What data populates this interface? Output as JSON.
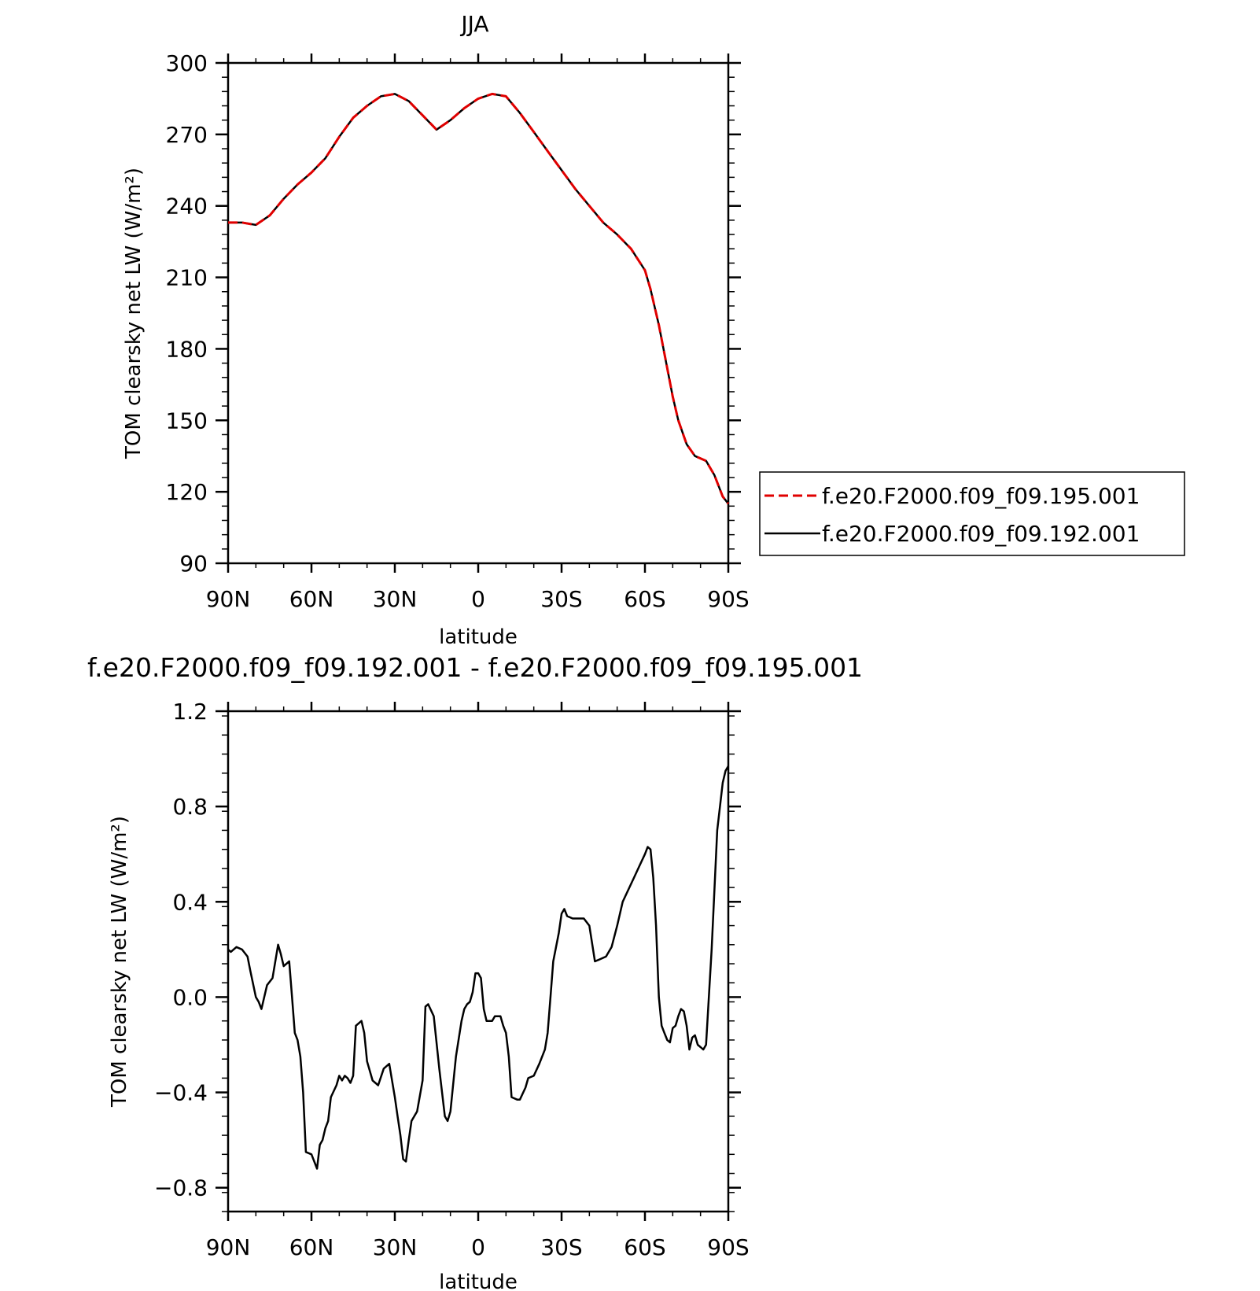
{
  "chart_data": [
    {
      "type": "line",
      "title": "JJA",
      "xlabel": "latitude",
      "ylabel": "TOM clearsky net LW (W/m²)",
      "xlim": [
        90,
        -90
      ],
      "ylim": [
        90,
        300
      ],
      "x_ticks": [
        90,
        60,
        30,
        0,
        -30,
        -60,
        -90
      ],
      "x_tick_labels": [
        "90N",
        "60N",
        "30N",
        "0",
        "30S",
        "60S",
        "90S"
      ],
      "y_ticks": [
        90,
        120,
        150,
        180,
        210,
        240,
        270,
        300
      ],
      "y_tick_labels": [
        "90",
        "120",
        "150",
        "180",
        "210",
        "240",
        "270",
        "300"
      ],
      "grid": false,
      "legend_position": "right",
      "series": [
        {
          "name": "f.e20.F2000.f09_f09.195.001",
          "color": "#e00000",
          "dash": "dashed",
          "x": [
            90,
            85,
            80,
            75,
            70,
            65,
            60,
            55,
            50,
            45,
            40,
            35,
            30,
            25,
            20,
            15,
            10,
            5,
            0,
            -5,
            -10,
            -15,
            -20,
            -25,
            -30,
            -35,
            -40,
            -45,
            -50,
            -55,
            -60,
            -62,
            -65,
            -68,
            -70,
            -72,
            -75,
            -78,
            -80,
            -82,
            -85,
            -88,
            -90
          ],
          "y": [
            233,
            233,
            232,
            236,
            243,
            249,
            254,
            260,
            269,
            277,
            282,
            286,
            287,
            284,
            278,
            272,
            276,
            281,
            285,
            287,
            286,
            279,
            271,
            263,
            255,
            247,
            240,
            233,
            228,
            222,
            213,
            205,
            190,
            172,
            160,
            150,
            140,
            135,
            134,
            133,
            127,
            118,
            115
          ]
        },
        {
          "name": "f.e20.F2000.f09_f09.192.001",
          "color": "#000000",
          "dash": "solid",
          "x": [
            90,
            85,
            80,
            75,
            70,
            65,
            60,
            55,
            50,
            45,
            40,
            35,
            30,
            25,
            20,
            15,
            10,
            5,
            0,
            -5,
            -10,
            -15,
            -20,
            -25,
            -30,
            -35,
            -40,
            -45,
            -50,
            -55,
            -60,
            -62,
            -65,
            -68,
            -70,
            -72,
            -75,
            -78,
            -80,
            -82,
            -85,
            -88,
            -90
          ],
          "y": [
            233,
            233,
            232,
            236,
            243,
            249,
            254,
            260,
            269,
            277,
            282,
            286,
            287,
            284,
            278,
            272,
            276,
            281,
            285,
            287,
            286,
            279,
            271,
            263,
            255,
            247,
            240,
            233,
            228,
            222,
            213,
            205,
            190,
            172,
            160,
            150,
            140,
            135,
            134,
            133,
            127,
            118,
            115
          ]
        }
      ]
    },
    {
      "type": "line",
      "title": "f.e20.F2000.f09_f09.192.001 - f.e20.F2000.f09_f09.195.001",
      "xlabel": "latitude",
      "ylabel": "TOM clearsky net LW (W/m²)",
      "xlim": [
        90,
        -90
      ],
      "ylim": [
        -0.9,
        1.2
      ],
      "x_ticks": [
        90,
        60,
        30,
        0,
        -30,
        -60,
        -90
      ],
      "x_tick_labels": [
        "90N",
        "60N",
        "30N",
        "0",
        "30S",
        "60S",
        "90S"
      ],
      "y_ticks": [
        -0.8,
        -0.4,
        0.0,
        0.4,
        0.8,
        1.2
      ],
      "y_tick_labels": [
        "−0.8",
        "−0.4",
        "0.0",
        "0.4",
        "0.8",
        "1.2"
      ],
      "grid": false,
      "series": [
        {
          "color": "#000000",
          "x": [
            90,
            89,
            87,
            85,
            83,
            82,
            80,
            79,
            78,
            76,
            74,
            72,
            71,
            70,
            68,
            67,
            66,
            65,
            64,
            63,
            62,
            60,
            58,
            57,
            56,
            55,
            54,
            53,
            51,
            50,
            49,
            48,
            47,
            46,
            45,
            44,
            42,
            41,
            40,
            38,
            37,
            36,
            34,
            32,
            30,
            29,
            28,
            27,
            26,
            25,
            24,
            22,
            20,
            19,
            18,
            16,
            14,
            12,
            11,
            10,
            8,
            6,
            5,
            4,
            3,
            2,
            1,
            0,
            -1,
            -2,
            -3,
            -5,
            -6,
            -8,
            -9,
            -10,
            -11,
            -12,
            -14,
            -15,
            -17,
            -18,
            -20,
            -22,
            -24,
            -25,
            -26,
            -27,
            -29,
            -30,
            -31,
            -32,
            -34,
            -35,
            -37,
            -38,
            -40,
            -42,
            -44,
            -46,
            -48,
            -50,
            -52,
            -54,
            -56,
            -58,
            -60,
            -61,
            -62,
            -63,
            -64,
            -65,
            -66,
            -67,
            -68,
            -69,
            -70,
            -71,
            -72,
            -73,
            -74,
            -75,
            -76,
            -77,
            -78,
            -79,
            -80,
            -81,
            -82,
            -84,
            -86,
            -88,
            -89,
            -90
          ],
          "y": [
            0.2,
            0.19,
            0.21,
            0.2,
            0.17,
            0.11,
            0.0,
            -0.02,
            -0.05,
            0.05,
            0.08,
            0.22,
            0.18,
            0.13,
            0.15,
            0.0,
            -0.15,
            -0.18,
            -0.25,
            -0.4,
            -0.65,
            -0.66,
            -0.72,
            -0.62,
            -0.6,
            -0.55,
            -0.52,
            -0.42,
            -0.37,
            -0.33,
            -0.35,
            -0.33,
            -0.34,
            -0.36,
            -0.33,
            -0.12,
            -0.1,
            -0.15,
            -0.27,
            -0.35,
            -0.36,
            -0.37,
            -0.3,
            -0.28,
            -0.42,
            -0.5,
            -0.58,
            -0.68,
            -0.69,
            -0.6,
            -0.52,
            -0.48,
            -0.35,
            -0.04,
            -0.03,
            -0.08,
            -0.3,
            -0.5,
            -0.52,
            -0.48,
            -0.25,
            -0.1,
            -0.05,
            -0.03,
            -0.02,
            0.02,
            0.1,
            0.1,
            0.08,
            -0.05,
            -0.1,
            -0.1,
            -0.08,
            -0.08,
            -0.12,
            -0.15,
            -0.25,
            -0.42,
            -0.43,
            -0.43,
            -0.38,
            -0.34,
            -0.33,
            -0.28,
            -0.22,
            -0.15,
            -0.0,
            0.15,
            0.27,
            0.35,
            0.37,
            0.34,
            0.33,
            0.33,
            0.33,
            0.33,
            0.3,
            0.15,
            0.16,
            0.17,
            0.21,
            0.3,
            0.4,
            0.45,
            0.5,
            0.55,
            0.6,
            0.63,
            0.62,
            0.5,
            0.3,
            0.0,
            -0.12,
            -0.15,
            -0.18,
            -0.19,
            -0.13,
            -0.12,
            -0.08,
            -0.05,
            -0.06,
            -0.12,
            -0.22,
            -0.17,
            -0.16,
            -0.2,
            -0.21,
            -0.22,
            -0.2,
            0.2,
            0.7,
            0.9,
            0.95,
            0.97
          ]
        }
      ]
    }
  ]
}
